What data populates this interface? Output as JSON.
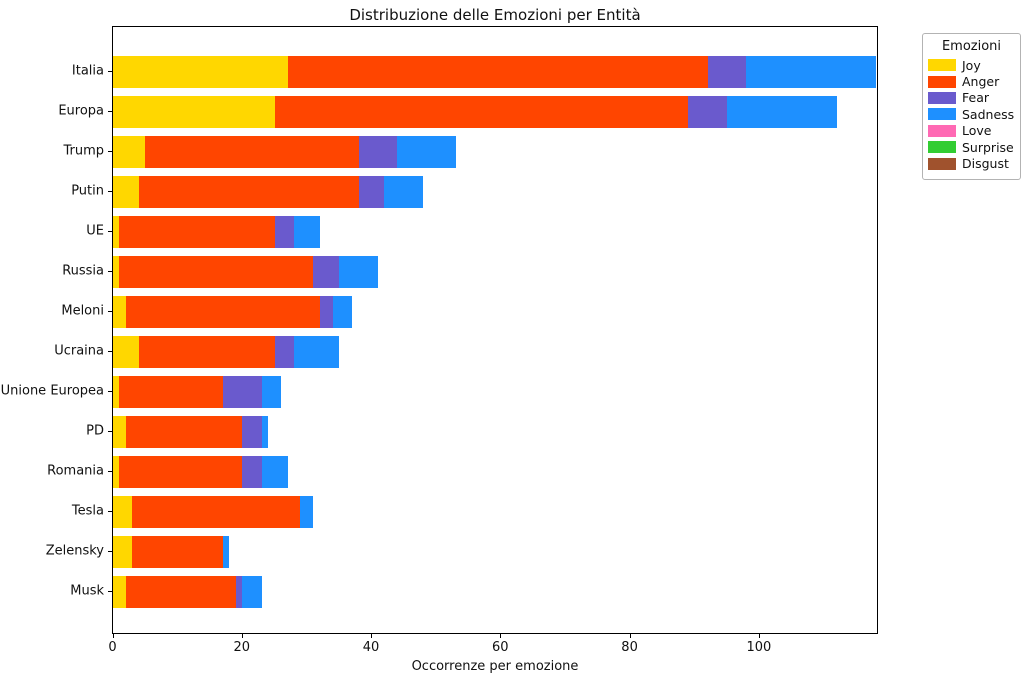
{
  "figure": {
    "title": "Distribuzione delle Emozioni per Entità",
    "xlabel": "Occorrenze per emozione",
    "legend_title": "Emozioni"
  },
  "chart_data": {
    "type": "bar",
    "orientation": "horizontal",
    "stacked": true,
    "title": "Distribuzione delle Emozioni per Entità",
    "xlabel": "Occorrenze per emozione",
    "ylabel": "",
    "grid": false,
    "xlim": [
      0,
      118.2
    ],
    "xticks": [
      0,
      20,
      40,
      60,
      80,
      100
    ],
    "categories": [
      "Italia",
      "Europa",
      "Trump",
      "Putin",
      "UE",
      "Russia",
      "Meloni",
      "Ucraina",
      "Unione Europea",
      "PD",
      "Romania",
      "Tesla",
      "Zelensky",
      "Musk"
    ],
    "series": [
      {
        "name": "Joy",
        "color": "#FFD700",
        "values": [
          27,
          25,
          5,
          4,
          1,
          1,
          2,
          4,
          1,
          2,
          1,
          3,
          3,
          2
        ]
      },
      {
        "name": "Anger",
        "color": "#FF4500",
        "values": [
          65,
          64,
          33,
          34,
          24,
          30,
          30,
          21,
          16,
          18,
          19,
          26,
          14,
          17
        ]
      },
      {
        "name": "Fear",
        "color": "#6A5ACD",
        "values": [
          6,
          6,
          6,
          4,
          3,
          4,
          2,
          3,
          6,
          3,
          3,
          0,
          0,
          1
        ]
      },
      {
        "name": "Sadness",
        "color": "#1E90FF",
        "values": [
          20,
          17,
          9,
          6,
          4,
          6,
          3,
          7,
          3,
          1,
          4,
          2,
          1,
          3
        ]
      },
      {
        "name": "Love",
        "color": "#FF69B4",
        "values": [
          0,
          0,
          0,
          0,
          0,
          0,
          0,
          0,
          0,
          0,
          0,
          0,
          0,
          0
        ]
      },
      {
        "name": "Surprise",
        "color": "#32CD32",
        "values": [
          0,
          0,
          0,
          0,
          0,
          0,
          0,
          0,
          0,
          0,
          0,
          0,
          0,
          0
        ]
      },
      {
        "name": "Disgust",
        "color": "#A0522D",
        "values": [
          0,
          0,
          0,
          0,
          0,
          0,
          0,
          0,
          0,
          0,
          0,
          0,
          0,
          0
        ]
      }
    ],
    "totals": [
      118,
      112,
      53,
      48,
      32,
      41,
      37,
      35,
      26,
      24,
      27,
      31,
      18,
      23
    ],
    "legend": {
      "title": "Emozioni",
      "position": "outside-upper-right",
      "entries": [
        "Joy",
        "Anger",
        "Fear",
        "Sadness",
        "Love",
        "Surprise",
        "Disgust"
      ]
    }
  }
}
